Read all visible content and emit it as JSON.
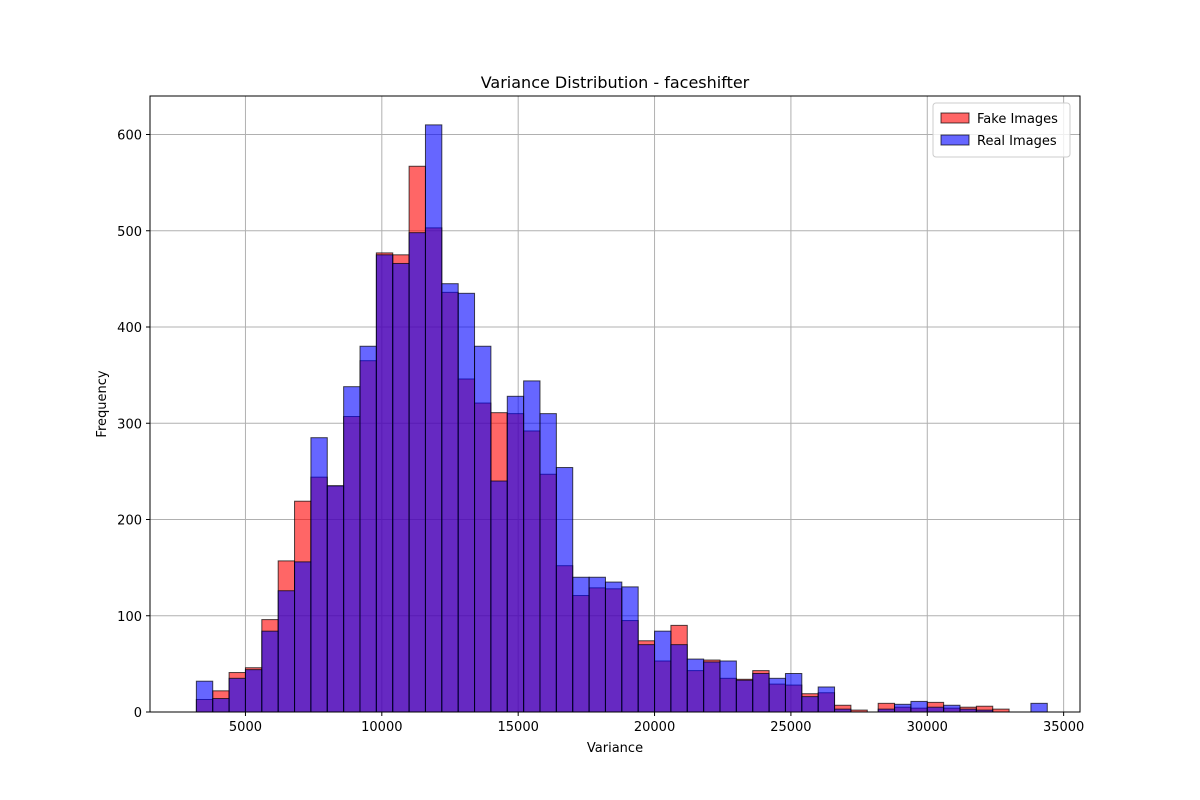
{
  "chart_data": {
    "type": "bar",
    "title": "Variance Distribution - faceshifter",
    "xlabel": "Variance",
    "ylabel": "Frequency",
    "xlim": [
      1500,
      35600
    ],
    "ylim": [
      0,
      640
    ],
    "xticks": [
      5000,
      10000,
      15000,
      20000,
      25000,
      30000,
      35000
    ],
    "yticks": [
      0,
      100,
      200,
      300,
      400,
      500,
      600
    ],
    "grid": true,
    "legend_position": "top-right",
    "series": [
      {
        "name": "Fake Images",
        "color": "#ff0000",
        "opacity": 0.6,
        "bins": [
          [
            3200,
            3800,
            13
          ],
          [
            3800,
            4400,
            22
          ],
          [
            4400,
            5000,
            41
          ],
          [
            5000,
            5600,
            46
          ],
          [
            5600,
            6200,
            96
          ],
          [
            6200,
            6800,
            157
          ],
          [
            6800,
            7400,
            219
          ],
          [
            7400,
            8000,
            244
          ],
          [
            8000,
            8600,
            235
          ],
          [
            8600,
            9200,
            307
          ],
          [
            9200,
            9800,
            365
          ],
          [
            9800,
            10400,
            477
          ],
          [
            10400,
            11000,
            475
          ],
          [
            11000,
            11600,
            567
          ],
          [
            11600,
            12200,
            503
          ],
          [
            12200,
            12800,
            436
          ],
          [
            12800,
            13400,
            346
          ],
          [
            13400,
            14000,
            321
          ],
          [
            14000,
            14600,
            311
          ],
          [
            14600,
            15200,
            310
          ],
          [
            15200,
            15800,
            292
          ],
          [
            15800,
            16400,
            247
          ],
          [
            16400,
            17000,
            152
          ],
          [
            17000,
            17600,
            121
          ],
          [
            17600,
            18200,
            129
          ],
          [
            18200,
            18800,
            128
          ],
          [
            18800,
            19400,
            95
          ],
          [
            19400,
            20000,
            74
          ],
          [
            20000,
            20600,
            53
          ],
          [
            20600,
            21200,
            90
          ],
          [
            21200,
            21800,
            43
          ],
          [
            21800,
            22400,
            54
          ],
          [
            22400,
            23000,
            35
          ],
          [
            23000,
            23600,
            34
          ],
          [
            23600,
            24200,
            43
          ],
          [
            24200,
            24800,
            29
          ],
          [
            24800,
            25400,
            28
          ],
          [
            25400,
            26000,
            19
          ],
          [
            26000,
            26600,
            20
          ],
          [
            26600,
            27200,
            7
          ],
          [
            27200,
            27800,
            2
          ],
          [
            28200,
            28800,
            9
          ],
          [
            28800,
            29400,
            5
          ],
          [
            29400,
            30000,
            4
          ],
          [
            30000,
            30600,
            10
          ],
          [
            30600,
            31200,
            4
          ],
          [
            31200,
            31800,
            5
          ],
          [
            31800,
            32400,
            6
          ],
          [
            32400,
            33000,
            3
          ]
        ]
      },
      {
        "name": "Real Images",
        "color": "#0000ff",
        "opacity": 0.6,
        "bins": [
          [
            3200,
            3800,
            32
          ],
          [
            3800,
            4400,
            14
          ],
          [
            4400,
            5000,
            35
          ],
          [
            5000,
            5600,
            44
          ],
          [
            5600,
            6200,
            84
          ],
          [
            6200,
            6800,
            126
          ],
          [
            6800,
            7400,
            156
          ],
          [
            7400,
            8000,
            285
          ],
          [
            8000,
            8600,
            235
          ],
          [
            8600,
            9200,
            338
          ],
          [
            9200,
            9800,
            380
          ],
          [
            9800,
            10400,
            475
          ],
          [
            10400,
            11000,
            466
          ],
          [
            11000,
            11600,
            498
          ],
          [
            11600,
            12200,
            610
          ],
          [
            12200,
            12800,
            445
          ],
          [
            12800,
            13400,
            435
          ],
          [
            13400,
            14000,
            380
          ],
          [
            14000,
            14600,
            240
          ],
          [
            14600,
            15200,
            328
          ],
          [
            15200,
            15800,
            344
          ],
          [
            15800,
            16400,
            310
          ],
          [
            16400,
            17000,
            254
          ],
          [
            17000,
            17600,
            140
          ],
          [
            17600,
            18200,
            140
          ],
          [
            18200,
            18800,
            135
          ],
          [
            18800,
            19400,
            130
          ],
          [
            19400,
            20000,
            70
          ],
          [
            20000,
            20600,
            84
          ],
          [
            20600,
            21200,
            70
          ],
          [
            21200,
            21800,
            55
          ],
          [
            21800,
            22400,
            52
          ],
          [
            22400,
            23000,
            53
          ],
          [
            23000,
            23600,
            33
          ],
          [
            23600,
            24200,
            40
          ],
          [
            24200,
            24800,
            35
          ],
          [
            24800,
            25400,
            40
          ],
          [
            25400,
            26000,
            16
          ],
          [
            26000,
            26600,
            26
          ],
          [
            26600,
            27200,
            3
          ],
          [
            28200,
            28800,
            3
          ],
          [
            28800,
            29400,
            8
          ],
          [
            29400,
            30000,
            11
          ],
          [
            30000,
            30600,
            5
          ],
          [
            30600,
            31200,
            7
          ],
          [
            31200,
            31800,
            3
          ],
          [
            31800,
            32400,
            2
          ],
          [
            33800,
            34400,
            9
          ]
        ]
      }
    ]
  }
}
